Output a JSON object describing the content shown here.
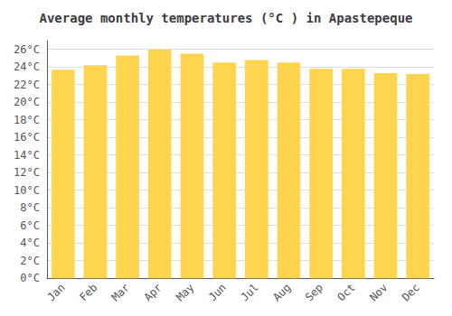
{
  "chart_data": {
    "type": "bar",
    "title": "Average monthly temperatures (°C ) in Apastepeque",
    "categories": [
      "Jan",
      "Feb",
      "Mar",
      "Apr",
      "May",
      "Jun",
      "Jul",
      "Aug",
      "Sep",
      "Oct",
      "Nov",
      "Dec"
    ],
    "values": [
      23.7,
      24.2,
      25.3,
      26.0,
      25.5,
      24.5,
      24.8,
      24.5,
      23.8,
      23.8,
      23.3,
      23.2
    ],
    "color": "#FFD54F",
    "ylim": [
      0,
      27
    ],
    "yticks": [
      {
        "value": 0,
        "label": "0°C"
      },
      {
        "value": 2,
        "label": "2°C"
      },
      {
        "value": 4,
        "label": "4°C"
      },
      {
        "value": 6,
        "label": "6°C"
      },
      {
        "value": 8,
        "label": "8°C"
      },
      {
        "value": 10,
        "label": "10°C"
      },
      {
        "value": 12,
        "label": "12°C"
      },
      {
        "value": 14,
        "label": "14°C"
      },
      {
        "value": 16,
        "label": "16°C"
      },
      {
        "value": 18,
        "label": "18°C"
      },
      {
        "value": 20,
        "label": "20°C"
      },
      {
        "value": 22,
        "label": "22°C"
      },
      {
        "value": 24,
        "label": "24°C"
      },
      {
        "value": 26,
        "label": "26°C"
      }
    ],
    "grid": true
  }
}
